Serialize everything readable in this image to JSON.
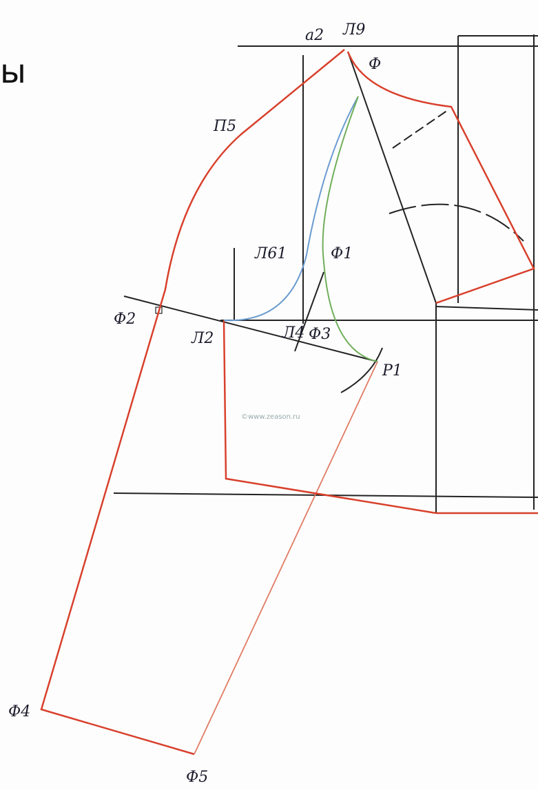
{
  "header": {
    "title_fragment": "ы"
  },
  "labels": {
    "a2": "а2",
    "l9": "Л9",
    "f": "Ф",
    "p5": "П5",
    "l61": "Л61",
    "f1": "Ф1",
    "f2": "Ф2",
    "l2": "Л2",
    "l4": "Л4",
    "f3": "Ф3",
    "r1": "Р1",
    "f4": "Ф4",
    "f5": "Ф5"
  },
  "watermark": "©www.zeason.ru"
}
